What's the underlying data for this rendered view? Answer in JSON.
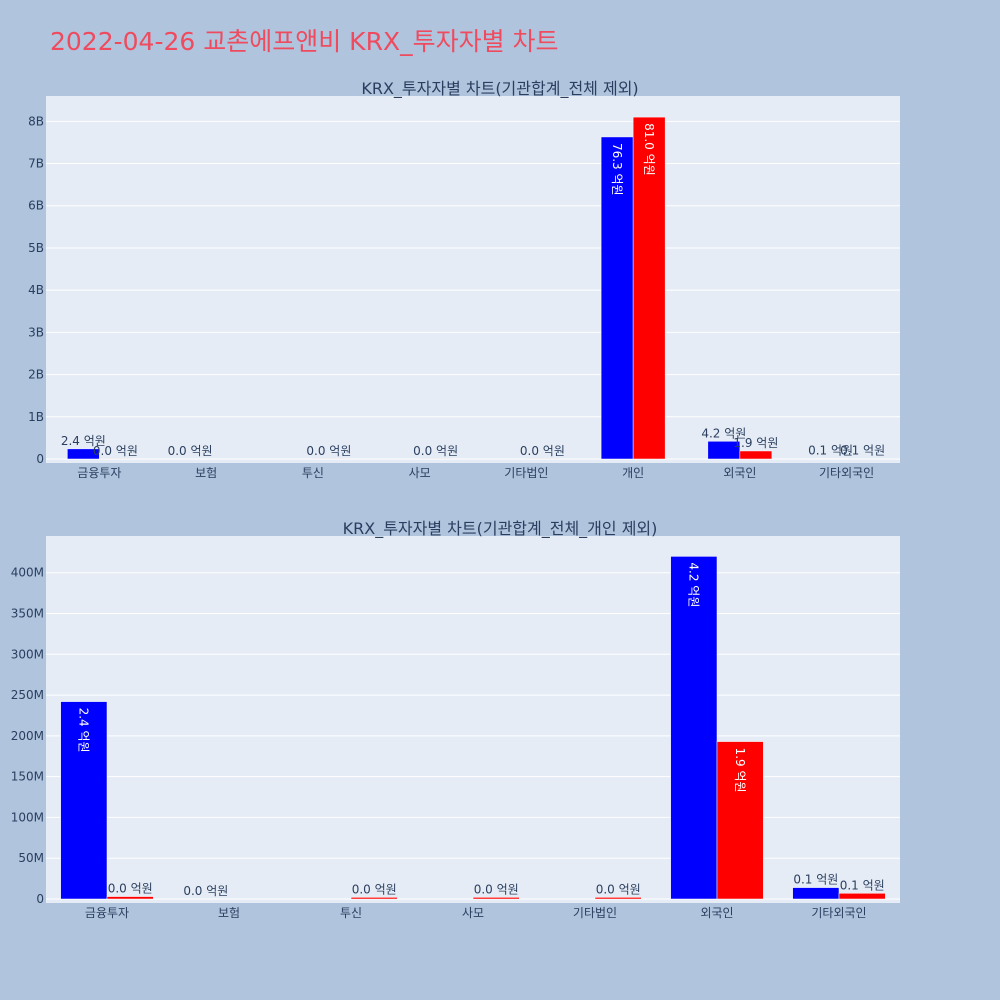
{
  "page": {
    "title": "2022-04-26 교촌에프앤비 KRX_투자자별 차트"
  },
  "colors": {
    "buy": "#0000FF",
    "sell": "#FF0000",
    "plot_bg": "#E5ECF6",
    "paper_bg": "#B0C4DE",
    "title": "#EF4B5F"
  },
  "chart_data": [
    {
      "type": "bar",
      "title": "KRX_투자자별 차트(기관합계_전체 제외)",
      "categories": [
        "금융투자",
        "보험",
        "투신",
        "사모",
        "기타법인",
        "개인",
        "외국인",
        "기타외국인"
      ],
      "series": [
        {
          "color": "#0000FF",
          "values": [
            240000000,
            0,
            null,
            null,
            null,
            7630000000,
            420000000,
            10000000
          ],
          "labels": [
            "2.4 억원",
            "0.0 억원",
            "",
            "",
            "",
            "76.3 억원",
            "4.2 억원",
            "0.1 억원"
          ]
        },
        {
          "color": "#FF0000",
          "values": [
            3000000,
            null,
            2000000,
            2000000,
            2000000,
            8100000000,
            190000000,
            6000000
          ],
          "labels": [
            "0.0 억원",
            "",
            "0.0 억원",
            "0.0 억원",
            "0.0 억원",
            "81.0 억원",
            "1.9 억원",
            "0.1 억원"
          ]
        }
      ],
      "ylim": [
        0,
        8600000000
      ],
      "yticks": [
        0,
        1000000000,
        2000000000,
        3000000000,
        4000000000,
        5000000000,
        6000000000,
        7000000000,
        8000000000
      ],
      "yticklabels": [
        "0",
        "1B",
        "2B",
        "3B",
        "4B",
        "5B",
        "6B",
        "7B",
        "8B"
      ],
      "grid": true
    },
    {
      "type": "bar",
      "title": "KRX_투자자별 차트(기관합계_전체_개인 제외)",
      "categories": [
        "금융투자",
        "보험",
        "투신",
        "사모",
        "기타법인",
        "외국인",
        "기타외국인"
      ],
      "series": [
        {
          "color": "#0000FF",
          "values": [
            242000000,
            0,
            null,
            null,
            null,
            420000000,
            14000000
          ],
          "labels": [
            "2.4 억원",
            "0.0 억원",
            "",
            "",
            "",
            "4.2 억원",
            "0.1 억원"
          ]
        },
        {
          "color": "#FF0000",
          "values": [
            3000000,
            null,
            2000000,
            2000000,
            2000000,
            193000000,
            7000000
          ],
          "labels": [
            "0.0 억원",
            "",
            "0.0 억원",
            "0.0 억원",
            "0.0 억원",
            "1.9 억원",
            "0.1 억원"
          ]
        }
      ],
      "ylim": [
        0,
        445000000
      ],
      "yticks": [
        0,
        50000000,
        100000000,
        150000000,
        200000000,
        250000000,
        300000000,
        350000000,
        400000000
      ],
      "yticklabels": [
        "0",
        "50M",
        "100M",
        "150M",
        "200M",
        "250M",
        "300M",
        "350M",
        "400M"
      ],
      "grid": true
    }
  ]
}
